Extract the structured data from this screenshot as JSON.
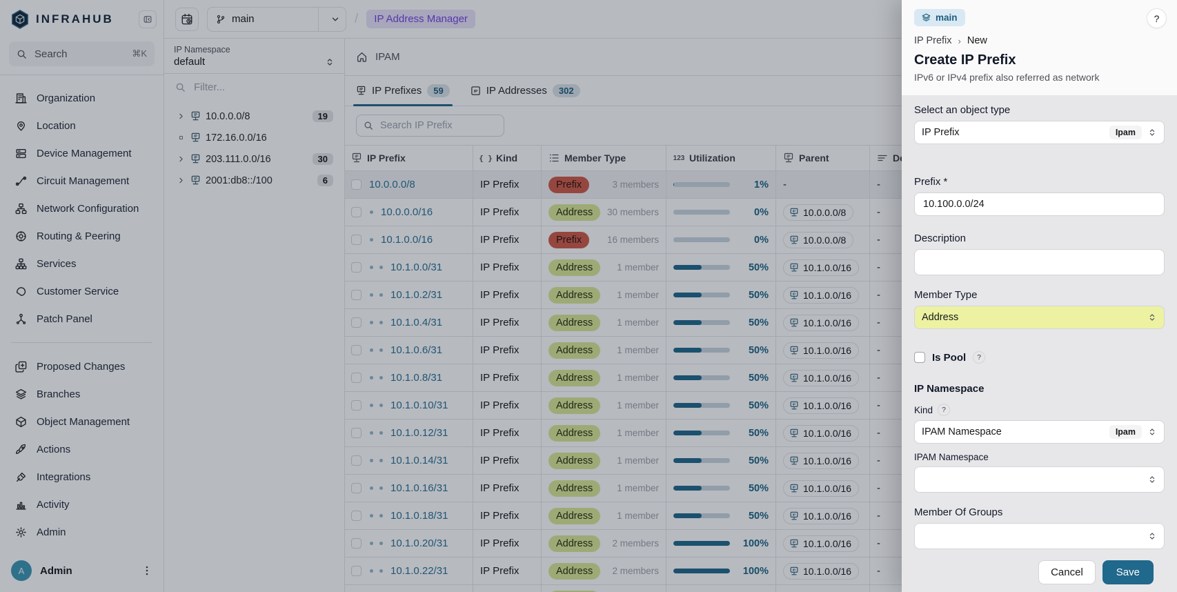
{
  "colors": {
    "accent": "#20688C",
    "accent_text": "#1C6485",
    "link": "#2A7095",
    "prefix_badge_bg": "#CF5B48",
    "address_badge_bg": "#DCE897",
    "member_select_bg": "#ECF2A2",
    "breadcrumb_pill_bg": "#E9E3FA",
    "breadcrumb_pill_text": "#7445E0",
    "branch_badge_bg": "#D9E9F3",
    "branch_badge_text": "#1D5E7D",
    "avatar_bg": "#3D97B3",
    "bar_track": "#C9D6DE"
  },
  "sidebar": {
    "brand": "INFRAHUB",
    "search_placeholder": "Search",
    "search_shortcut": "⌘K",
    "nav": [
      {
        "label": "Organization",
        "icon": "building",
        "group": 1
      },
      {
        "label": "Location",
        "icon": "pin",
        "group": 1
      },
      {
        "label": "Device Management",
        "icon": "server",
        "group": 1
      },
      {
        "label": "Circuit Management",
        "icon": "circuit",
        "group": 1
      },
      {
        "label": "Network Configuration",
        "icon": "network",
        "group": 1
      },
      {
        "label": "Routing & Peering",
        "icon": "globe",
        "group": 1
      },
      {
        "label": "Services",
        "icon": "hierarchy",
        "group": 1
      },
      {
        "label": "Customer Service",
        "icon": "customer",
        "group": 1
      },
      {
        "label": "Patch Panel",
        "icon": "patch",
        "group": 1
      },
      {
        "label": "Proposed Changes",
        "icon": "diff",
        "group": 2
      },
      {
        "label": "Branches",
        "icon": "layers",
        "group": 2
      },
      {
        "label": "Object Management",
        "icon": "cube",
        "group": 2
      },
      {
        "label": "Actions",
        "icon": "rocket",
        "group": 2
      },
      {
        "label": "Integrations",
        "icon": "plug",
        "group": 2
      },
      {
        "label": "Activity",
        "icon": "chart",
        "group": 2
      },
      {
        "label": "Admin",
        "icon": "gear",
        "group": 2
      }
    ],
    "user": {
      "initial": "A",
      "name": "Admin"
    }
  },
  "topbar": {
    "branch": "main",
    "separator": "/",
    "breadcrumb": "IP Address Manager"
  },
  "tree": {
    "namespace_label": "IP Namespace",
    "namespace_value": "default",
    "filter_placeholder": "Filter...",
    "items": [
      {
        "label": "10.0.0.0/8",
        "count": "19",
        "expandable": true
      },
      {
        "label": "172.16.0.0/16",
        "count": "",
        "expandable": false
      },
      {
        "label": "203.111.0.0/16",
        "count": "30",
        "expandable": true
      },
      {
        "label": "2001:db8::/100",
        "count": "6",
        "expandable": true
      }
    ]
  },
  "main": {
    "section_title": "IPAM",
    "tabs": [
      {
        "label": "IP Prefixes",
        "count": "59",
        "active": true
      },
      {
        "label": "IP Addresses",
        "count": "302",
        "active": false
      }
    ],
    "search_placeholder": "Search IP Prefix",
    "table": {
      "columns": [
        "IP Prefix",
        "Kind",
        "Member Type",
        "Utilization",
        "Parent",
        "Description"
      ],
      "rows": [
        {
          "prefix": "10.0.0.0/8",
          "depth": 0,
          "kind": "IP Prefix",
          "member_type": "Prefix",
          "members": "3 members",
          "utilization_pct": 1,
          "utilization_label": "1%",
          "parent": "-",
          "description": "-",
          "selected": true
        },
        {
          "prefix": "10.0.0.0/16",
          "depth": 1,
          "kind": "IP Prefix",
          "member_type": "Address",
          "members": "30 members",
          "utilization_pct": 0,
          "utilization_label": "0%",
          "parent": "10.0.0.0/8",
          "description": "-",
          "selected": false
        },
        {
          "prefix": "10.1.0.0/16",
          "depth": 1,
          "kind": "IP Prefix",
          "member_type": "Prefix",
          "members": "16 members",
          "utilization_pct": 0,
          "utilization_label": "0%",
          "parent": "10.0.0.0/8",
          "description": "-",
          "selected": false
        },
        {
          "prefix": "10.1.0.0/31",
          "depth": 2,
          "kind": "IP Prefix",
          "member_type": "Address",
          "members": "1 member",
          "utilization_pct": 50,
          "utilization_label": "50%",
          "parent": "10.1.0.0/16",
          "description": "-",
          "selected": false
        },
        {
          "prefix": "10.1.0.2/31",
          "depth": 2,
          "kind": "IP Prefix",
          "member_type": "Address",
          "members": "1 member",
          "utilization_pct": 50,
          "utilization_label": "50%",
          "parent": "10.1.0.0/16",
          "description": "-",
          "selected": false
        },
        {
          "prefix": "10.1.0.4/31",
          "depth": 2,
          "kind": "IP Prefix",
          "member_type": "Address",
          "members": "1 member",
          "utilization_pct": 50,
          "utilization_label": "50%",
          "parent": "10.1.0.0/16",
          "description": "-",
          "selected": false
        },
        {
          "prefix": "10.1.0.6/31",
          "depth": 2,
          "kind": "IP Prefix",
          "member_type": "Address",
          "members": "1 member",
          "utilization_pct": 50,
          "utilization_label": "50%",
          "parent": "10.1.0.0/16",
          "description": "-",
          "selected": false
        },
        {
          "prefix": "10.1.0.8/31",
          "depth": 2,
          "kind": "IP Prefix",
          "member_type": "Address",
          "members": "1 member",
          "utilization_pct": 50,
          "utilization_label": "50%",
          "parent": "10.1.0.0/16",
          "description": "-",
          "selected": false
        },
        {
          "prefix": "10.1.0.10/31",
          "depth": 2,
          "kind": "IP Prefix",
          "member_type": "Address",
          "members": "1 member",
          "utilization_pct": 50,
          "utilization_label": "50%",
          "parent": "10.1.0.0/16",
          "description": "-",
          "selected": false
        },
        {
          "prefix": "10.1.0.12/31",
          "depth": 2,
          "kind": "IP Prefix",
          "member_type": "Address",
          "members": "1 member",
          "utilization_pct": 50,
          "utilization_label": "50%",
          "parent": "10.1.0.0/16",
          "description": "-",
          "selected": false
        },
        {
          "prefix": "10.1.0.14/31",
          "depth": 2,
          "kind": "IP Prefix",
          "member_type": "Address",
          "members": "1 member",
          "utilization_pct": 50,
          "utilization_label": "50%",
          "parent": "10.1.0.0/16",
          "description": "-",
          "selected": false
        },
        {
          "prefix": "10.1.0.16/31",
          "depth": 2,
          "kind": "IP Prefix",
          "member_type": "Address",
          "members": "1 member",
          "utilization_pct": 50,
          "utilization_label": "50%",
          "parent": "10.1.0.0/16",
          "description": "-",
          "selected": false
        },
        {
          "prefix": "10.1.0.18/31",
          "depth": 2,
          "kind": "IP Prefix",
          "member_type": "Address",
          "members": "1 member",
          "utilization_pct": 50,
          "utilization_label": "50%",
          "parent": "10.1.0.0/16",
          "description": "-",
          "selected": false
        },
        {
          "prefix": "10.1.0.20/31",
          "depth": 2,
          "kind": "IP Prefix",
          "member_type": "Address",
          "members": "2 members",
          "utilization_pct": 100,
          "utilization_label": "100%",
          "parent": "10.1.0.0/16",
          "description": "-",
          "selected": false
        },
        {
          "prefix": "10.1.0.22/31",
          "depth": 2,
          "kind": "IP Prefix",
          "member_type": "Address",
          "members": "2 members",
          "utilization_pct": 100,
          "utilization_label": "100%",
          "parent": "10.1.0.0/16",
          "description": "-",
          "selected": false
        }
      ],
      "partial_row_member_type": "Address"
    }
  },
  "drawer": {
    "branch_badge": "main",
    "help_label": "?",
    "breadcrumb": {
      "parent": "IP Prefix",
      "separator": "›",
      "current": "New"
    },
    "title": "Create IP Prefix",
    "subtitle": "IPv6 or IPv4 prefix also referred as network",
    "object_type_label": "Select an object type",
    "object_type_value": "IP Prefix",
    "object_type_badge": "Ipam",
    "prefix_label": "Prefix *",
    "prefix_value": "10.100.0.0/24",
    "description_label": "Description",
    "member_type_label": "Member Type",
    "member_type_value": "Address",
    "is_pool_label": "Is Pool",
    "is_pool_help": "?",
    "ip_namespace_heading": "IP Namespace",
    "kind_label": "Kind",
    "kind_help": "?",
    "kind_value": "IPAM Namespace",
    "kind_badge": "Ipam",
    "ipam_namespace_label": "IPAM Namespace",
    "member_of_groups_label": "Member Of Groups",
    "cancel_label": "Cancel",
    "save_label": "Save"
  }
}
